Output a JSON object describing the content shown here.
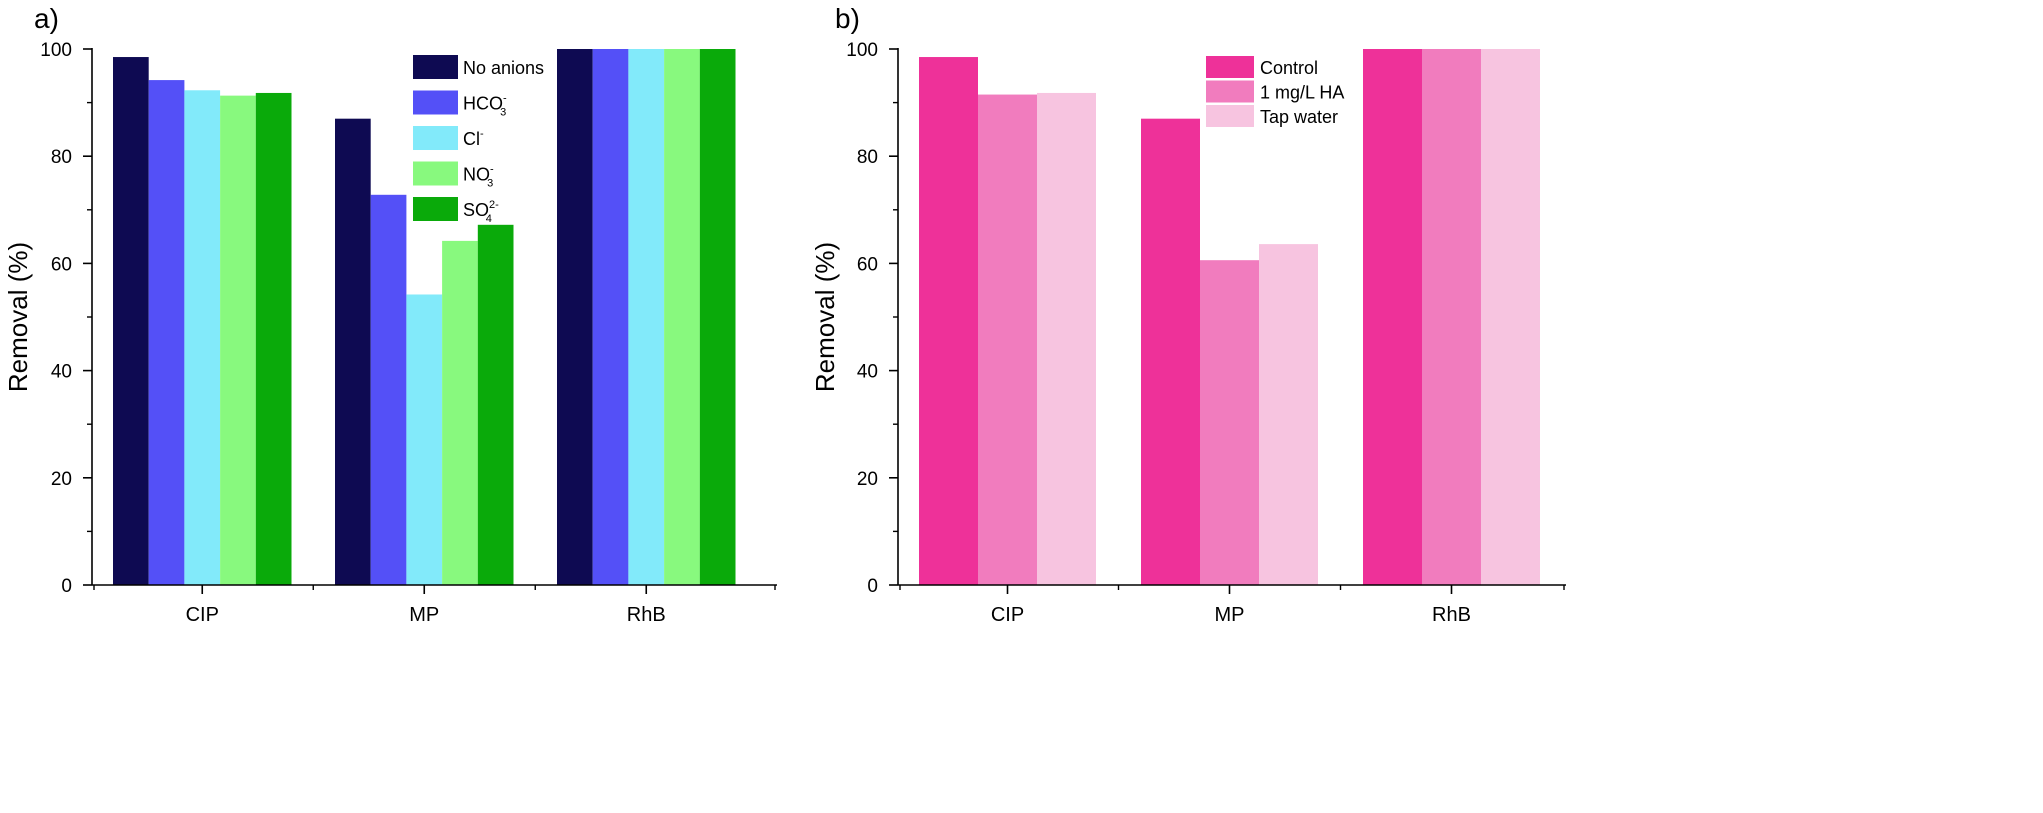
{
  "chart_data": [
    {
      "panel_label": "a)",
      "type": "bar",
      "categories": [
        "CIP",
        "MP",
        "RhB"
      ],
      "ylabel": "Removal (%)",
      "xlabel": "",
      "ylim": [
        0,
        100
      ],
      "yticks": [
        0,
        20,
        40,
        60,
        80,
        100
      ],
      "legend_placement": "top-right",
      "grid": false,
      "series": [
        {
          "name": "No anions",
          "legend": {
            "base": "No anions",
            "sub": "",
            "sup": ""
          },
          "color": "#0e0a52",
          "values": [
            98.5,
            87.0,
            100
          ]
        },
        {
          "name": "HCO3-",
          "legend": {
            "base": "HCO",
            "sub": "3",
            "sup": "-"
          },
          "color": "#5450f7",
          "values": [
            94.2,
            72.8,
            100
          ]
        },
        {
          "name": "Cl-",
          "legend": {
            "base": "Cl",
            "sub": "",
            "sup": "-"
          },
          "color": "#82eafa",
          "values": [
            92.3,
            54.2,
            100
          ]
        },
        {
          "name": "NO3-",
          "legend": {
            "base": "NO",
            "sub": "3",
            "sup": "-"
          },
          "color": "#88f97e",
          "values": [
            91.3,
            64.2,
            100
          ]
        },
        {
          "name": "SO42-",
          "legend": {
            "base": "SO",
            "sub": "4",
            "sup": "2-"
          },
          "color": "#0aaa0a",
          "values": [
            91.8,
            67.2,
            100
          ]
        }
      ]
    },
    {
      "panel_label": "b)",
      "type": "bar",
      "categories": [
        "CIP",
        "MP",
        "RhB"
      ],
      "ylabel": "Removal (%)",
      "xlabel": "",
      "ylim": [
        0,
        100
      ],
      "yticks": [
        0,
        20,
        40,
        60,
        80,
        100
      ],
      "legend_placement": "top-center",
      "grid": false,
      "series": [
        {
          "name": "Control",
          "legend": {
            "base": "Control",
            "sub": "",
            "sup": ""
          },
          "color": "#ee3199",
          "values": [
            98.5,
            87.0,
            100
          ]
        },
        {
          "name": "1 mg/L HA",
          "legend": {
            "base": "1 mg/L HA",
            "sub": "",
            "sup": ""
          },
          "color": "#f17cbe",
          "values": [
            91.5,
            60.6,
            100
          ]
        },
        {
          "name": "Tap water",
          "legend": {
            "base": "Tap water",
            "sub": "",
            "sup": ""
          },
          "color": "#f7c4e0",
          "values": [
            91.8,
            63.6,
            100
          ]
        }
      ]
    }
  ]
}
